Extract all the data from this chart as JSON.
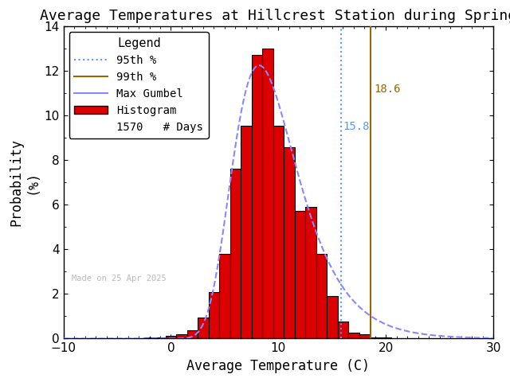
{
  "title": "Average Temperatures at Hillcrest Station during Spring",
  "xlabel": "Average Temperature (C)",
  "ylabel_line1": "Probability",
  "ylabel_line2": "(%)",
  "xlim": [
    -10,
    30
  ],
  "ylim": [
    0,
    14
  ],
  "yticks": [
    0,
    2,
    4,
    6,
    8,
    10,
    12,
    14
  ],
  "xticks": [
    -10,
    0,
    10,
    20,
    30
  ],
  "bin_centers": [
    -7,
    -6,
    -5,
    -4,
    -3,
    -2,
    -1,
    0,
    1,
    2,
    3,
    4,
    5,
    6,
    7,
    8,
    9,
    10,
    11,
    12,
    13,
    14,
    15,
    16,
    17,
    18,
    19,
    20,
    21,
    22,
    23,
    24
  ],
  "bin_values": [
    0.0,
    0.0,
    0.0,
    0.0,
    0.0,
    0.06,
    0.06,
    0.13,
    0.19,
    0.38,
    0.96,
    2.1,
    3.82,
    7.64,
    9.55,
    12.74,
    13.0,
    9.55,
    8.6,
    5.73,
    5.92,
    3.82,
    1.91,
    0.76,
    0.25,
    0.19,
    0.06,
    0.06,
    0.0,
    0.0,
    0.0,
    0.0
  ],
  "hist_color": "#dd0000",
  "hist_edge_color": "#000000",
  "p95_x": 15.8,
  "p99_x": 18.6,
  "p95_color": "#5599ff",
  "p95_line": "dotted",
  "p99_color": "#996600",
  "p99_line": "solid",
  "gumbel_color": "#8888ff",
  "gumbel_linestyle": "--",
  "n_days": 1570,
  "watermark": "Made on 25 Apr 2025",
  "watermark_color": "#bbbbbb",
  "bg_color": "#ffffff",
  "title_fontsize": 13,
  "axis_fontsize": 12,
  "legend_fontsize": 10,
  "tick_fontsize": 11,
  "gumbel_mu": 8.2,
  "gumbel_beta": 3.0
}
